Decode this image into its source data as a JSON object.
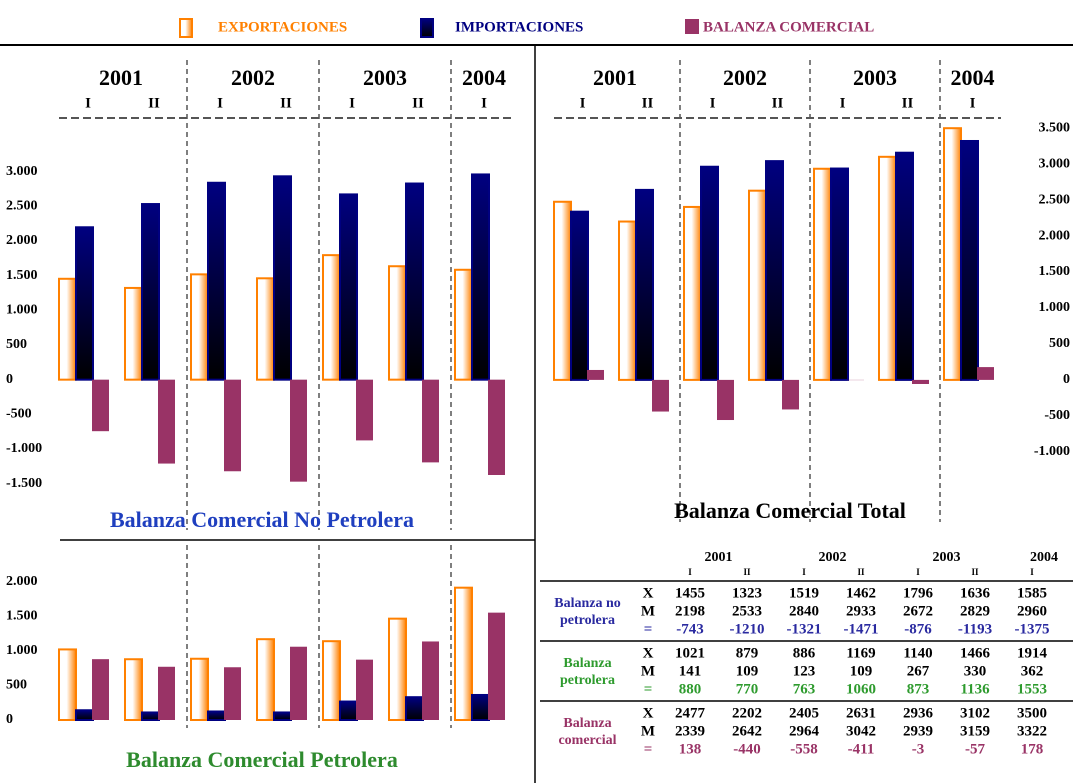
{
  "chart_data": [
    {
      "type": "bar",
      "title": "Balanza Comercial No Petrolera",
      "title_color": "#1f3fbf",
      "years": [
        "2001",
        "2002",
        "2003",
        "2004"
      ],
      "categories": [
        "I",
        "II",
        "I",
        "II",
        "I",
        "II",
        "I"
      ],
      "series": [
        {
          "name": "EXPORTACIONES",
          "color": "#ff8000",
          "values": [
            1455,
            1323,
            1519,
            1462,
            1796,
            1636,
            1585
          ]
        },
        {
          "name": "IMPORTACIONES",
          "color": "#000080",
          "values": [
            2198,
            2533,
            2840,
            2933,
            2672,
            2829,
            2960
          ]
        },
        {
          "name": "BALANZA COMERCIAL",
          "color": "#993366",
          "values": [
            -743,
            -1210,
            -1321,
            -1471,
            -876,
            -1193,
            -1375
          ]
        }
      ],
      "ylim": [
        -1750,
        3500
      ],
      "yticks": [
        {
          "value": -1500,
          "label": "-1.500"
        },
        {
          "value": -1000,
          "label": "-1.000"
        },
        -500,
        0,
        500,
        {
          "value": 1000,
          "label": "1.000"
        },
        {
          "value": 1500,
          "label": "1.500"
        },
        {
          "value": 2000,
          "label": "2.000"
        },
        {
          "value": 2500,
          "label": "2.500"
        },
        {
          "value": 3000,
          "label": "3.000"
        }
      ]
    },
    {
      "type": "bar",
      "title": "Balanza Comercial Petrolera",
      "title_color": "#2e8b2e",
      "categories": [
        "I",
        "II",
        "I",
        "II",
        "I",
        "II",
        "I"
      ],
      "series": [
        {
          "color": "#ff8000",
          "values": [
            1021,
            879,
            886,
            1169,
            1140,
            1466,
            1914
          ]
        },
        {
          "color": "#000080",
          "values": [
            141,
            109,
            123,
            109,
            267,
            330,
            362
          ]
        },
        {
          "color": "#993366",
          "values": [
            880,
            770,
            763,
            1060,
            873,
            1136,
            1553
          ]
        }
      ],
      "ylim": [
        0,
        2300
      ],
      "yticks": [
        0,
        500,
        {
          "value": 1000,
          "label": "1.000"
        },
        {
          "value": 1500,
          "label": "1.500"
        },
        {
          "value": 2000,
          "label": "2.000"
        }
      ]
    },
    {
      "type": "bar",
      "title": "Balanza Comercial Total",
      "title_color": "#000000",
      "years": [
        "2001",
        "2002",
        "2003",
        "2004"
      ],
      "categories": [
        "I",
        "II",
        "I",
        "II",
        "I",
        "II",
        "I"
      ],
      "series": [
        {
          "color": "#ff8000",
          "values": [
            2477,
            2202,
            2405,
            2631,
            2936,
            3102,
            3500
          ]
        },
        {
          "color": "#000080",
          "values": [
            2339,
            2642,
            2964,
            3042,
            2939,
            3159,
            3322
          ]
        },
        {
          "color": "#993366",
          "values": [
            138,
            -440,
            -558,
            -411,
            -3,
            -57,
            178
          ]
        }
      ],
      "ylim": [
        -1100,
        3600
      ],
      "yticks": [
        {
          "value": -1000,
          "label": "-1.000"
        },
        -500,
        0,
        500,
        {
          "value": 1000,
          "label": "1.000"
        },
        {
          "value": 1500,
          "label": "1.500"
        },
        {
          "value": 2000,
          "label": "2.000"
        },
        {
          "value": 2500,
          "label": "2.500"
        },
        {
          "value": 3000,
          "label": "3.000"
        },
        {
          "value": 3500,
          "label": "3.500"
        }
      ]
    }
  ],
  "table": {
    "row_groups": [
      "Balanza no petrolera",
      "Balanza petrolera",
      "Balanza comercial"
    ],
    "group_colors": [
      "#2a2aa0",
      "#2e9b2e",
      "#993366"
    ],
    "row_labels": [
      "X",
      "M",
      "="
    ]
  }
}
